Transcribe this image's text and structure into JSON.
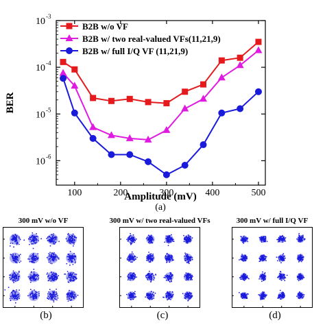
{
  "chart_data": [
    {
      "type": "line",
      "title": "",
      "xlabel": "Amplitude (mV)",
      "ylabel": "BER",
      "xlim": [
        60,
        515
      ],
      "ylim": [
        3e-07,
        0.001
      ],
      "yscale": "log",
      "xticks": [
        100,
        200,
        300,
        400,
        500
      ],
      "yticks": [
        {
          "value": 1e-06,
          "label": "10",
          "exp": "-6"
        },
        {
          "value": 1e-05,
          "label": "10",
          "exp": "-5"
        },
        {
          "value": 0.0001,
          "label": "10",
          "exp": "-4"
        },
        {
          "value": 0.001,
          "label": "10",
          "exp": "-3"
        }
      ],
      "grid": false,
      "legend": "top-left",
      "x": [
        75,
        100,
        140,
        180,
        220,
        260,
        300,
        340,
        380,
        420,
        460,
        500
      ],
      "series": [
        {
          "name": "B2B w/o VF",
          "marker": "square",
          "color": "#e41a1c",
          "values": [
            0.00013,
            9e-05,
            2.2e-05,
            1.9e-05,
            2.1e-05,
            1.8e-05,
            1.7e-05,
            3e-05,
            4.3e-05,
            0.00014,
            0.00016,
            0.00035
          ]
        },
        {
          "name": "B2B w/ two real-valued VFs(11,21,9)",
          "marker": "triangle",
          "color": "#e01be0",
          "values": [
            7.5e-05,
            4e-05,
            5.2e-06,
            3.5e-06,
            3e-06,
            2.8e-06,
            4.5e-06,
            1.3e-05,
            2.1e-05,
            6e-05,
            0.00011,
            0.00023
          ]
        },
        {
          "name": "B2B w/ full I/Q VF (11,21,9)",
          "marker": "circle",
          "color": "#1a1adb",
          "values": [
            5.8e-05,
            1.05e-05,
            3e-06,
            1.35e-06,
            1.35e-06,
            9.5e-07,
            5e-07,
            8e-07,
            2.2e-06,
            1.05e-05,
            1.3e-05,
            3e-05
          ]
        }
      ]
    },
    {
      "type": "scatter",
      "title": "300 mV w/o VF",
      "grid_levels": [
        -3,
        -1,
        1,
        3
      ],
      "spread": 0.25,
      "color": "#1a1add"
    },
    {
      "type": "scatter",
      "title": "300 mV w/ two real-valued VFs",
      "grid_levels": [
        -3,
        -1,
        1,
        3
      ],
      "spread": 0.2,
      "color": "#1a1add"
    },
    {
      "type": "scatter",
      "title": "300 mV w/ full I/Q VF",
      "grid_levels": [
        -3,
        -1,
        1,
        3
      ],
      "spread": 0.17,
      "color": "#1a1add"
    }
  ],
  "labels": {
    "a": "(a)",
    "b": "(b)",
    "c": "(c)",
    "d": "(d)"
  }
}
